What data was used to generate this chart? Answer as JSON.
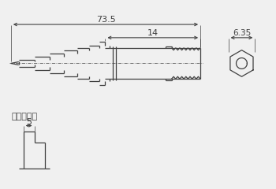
{
  "bg_color": "#f0f0f0",
  "line_color": "#404040",
  "dim_color": "#404040",
  "title_73_5": "73.5",
  "title_14": "14",
  "title_6_35": "6.35",
  "title_pitch": "径間ピッチ",
  "title_5": "5",
  "font_size_dim": 7.5,
  "font_size_pitch": 8.0
}
